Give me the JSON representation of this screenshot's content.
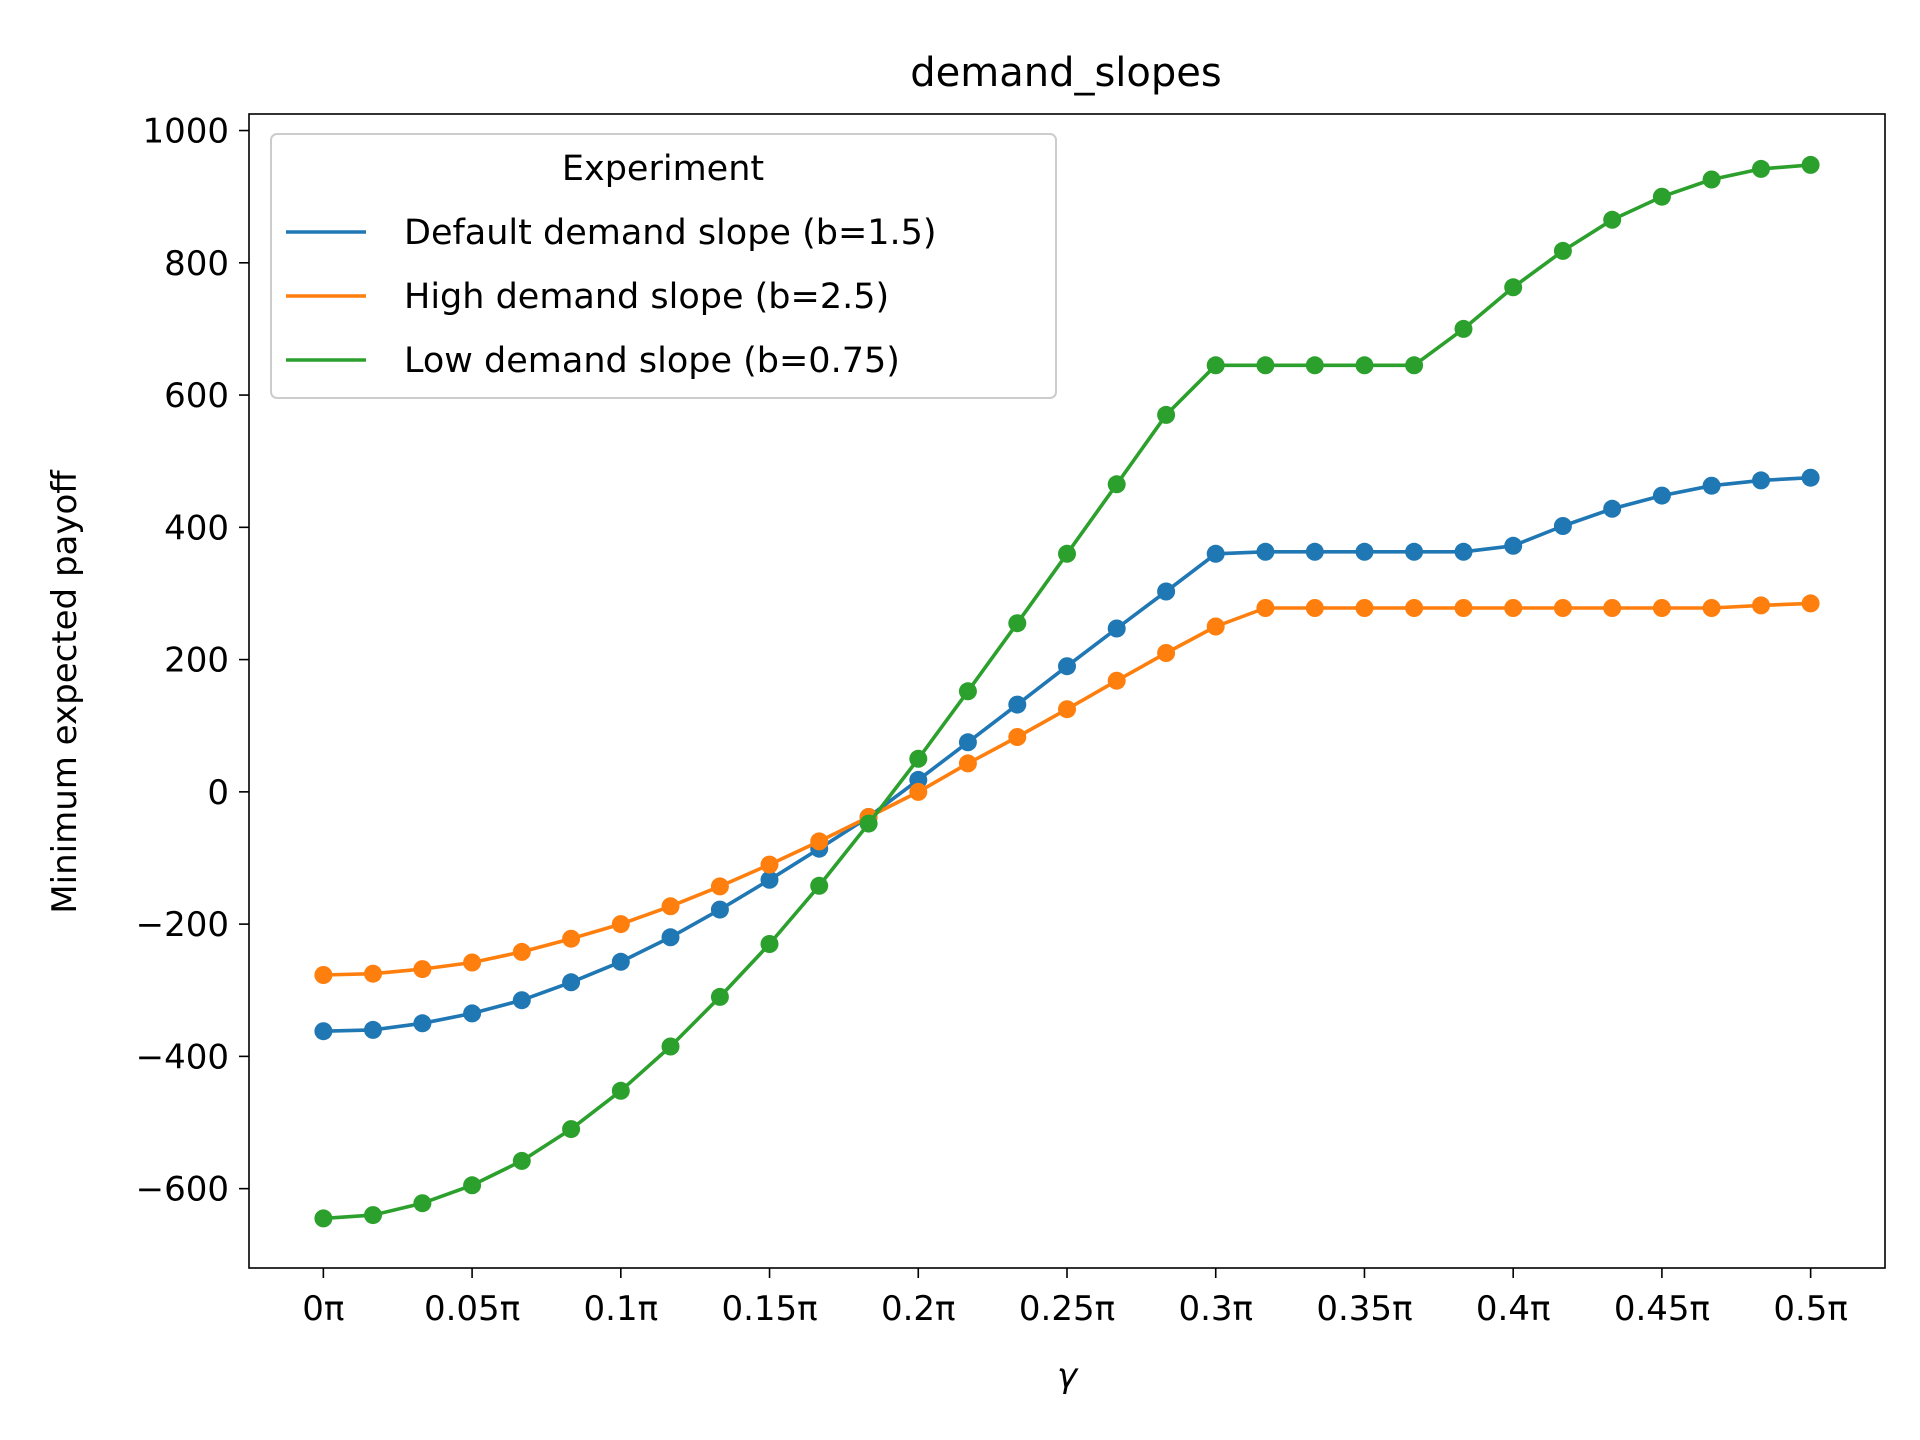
{
  "chart_data": {
    "type": "line",
    "title": "demand_slopes",
    "xlabel": "γ",
    "ylabel": "Minimum expected payoff",
    "xlim": [
      -0.025,
      0.525
    ],
    "ylim": [
      -720,
      1025
    ],
    "x_tick_values": [
      0,
      0.05,
      0.1,
      0.15,
      0.2,
      0.25,
      0.3,
      0.35,
      0.4,
      0.45,
      0.5
    ],
    "x_tick_labels": [
      "0π",
      "0.05π",
      "0.1π",
      "0.15π",
      "0.2π",
      "0.25π",
      "0.3π",
      "0.35π",
      "0.4π",
      "0.45π",
      "0.5π"
    ],
    "y_tick_values": [
      -600,
      -400,
      -200,
      0,
      200,
      400,
      600,
      800,
      1000
    ],
    "y_tick_labels": [
      "−600",
      "−400",
      "−200",
      "0",
      "200",
      "400",
      "600",
      "800",
      "1000"
    ],
    "grid": false,
    "legend": {
      "title": "Experiment",
      "placement": "top-left"
    },
    "x": [
      0,
      0.0167,
      0.0333,
      0.05,
      0.0667,
      0.0833,
      0.1,
      0.1167,
      0.1333,
      0.15,
      0.1667,
      0.1833,
      0.2,
      0.2167,
      0.2333,
      0.25,
      0.2667,
      0.2833,
      0.3,
      0.3167,
      0.3333,
      0.35,
      0.3667,
      0.3833,
      0.4,
      0.4167,
      0.4333,
      0.45,
      0.4667,
      0.4833,
      0.5
    ],
    "series": [
      {
        "name": "Default demand slope (b=1.5)",
        "color": "#1f77b4",
        "values": [
          -362,
          -360,
          -350,
          -335,
          -315,
          -288,
          -257,
          -220,
          -178,
          -133,
          -86,
          -38,
          18,
          75,
          132,
          190,
          247,
          303,
          360,
          363,
          363,
          363,
          363,
          363,
          372,
          402,
          428,
          448,
          463,
          471,
          475
        ]
      },
      {
        "name": "High demand slope (b=2.5)",
        "color": "#ff7f0e",
        "values": [
          -277,
          -275,
          -268,
          -258,
          -242,
          -222,
          -200,
          -173,
          -143,
          -110,
          -75,
          -38,
          0,
          43,
          83,
          125,
          168,
          210,
          250,
          278,
          278,
          278,
          278,
          278,
          278,
          278,
          278,
          278,
          278,
          282,
          285
        ]
      },
      {
        "name": "Low demand slope (b=0.75)",
        "color": "#2ca02c",
        "values": [
          -645,
          -640,
          -622,
          -595,
          -558,
          -510,
          -452,
          -385,
          -310,
          -230,
          -142,
          -48,
          50,
          152,
          255,
          360,
          465,
          570,
          645,
          645,
          645,
          645,
          645,
          700,
          763,
          818,
          865,
          900,
          926,
          942,
          948
        ]
      }
    ]
  }
}
